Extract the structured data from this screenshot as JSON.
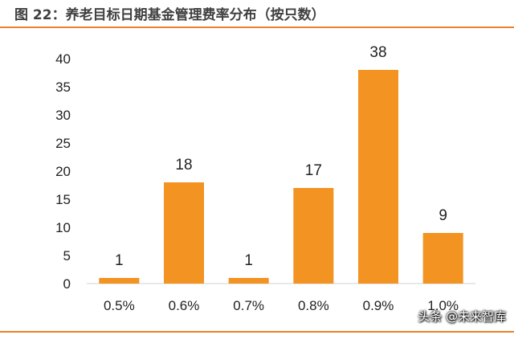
{
  "figure": {
    "title": "图 22：养老目标日期基金管理费率分布（按只数）",
    "accent_color": "#E8832A"
  },
  "watermark": "头条 @未来智库",
  "chart_data": {
    "type": "bar",
    "categories": [
      "0.5%",
      "0.6%",
      "0.7%",
      "0.8%",
      "0.9%",
      "1.0%"
    ],
    "values": [
      1,
      18,
      1,
      17,
      38,
      9
    ],
    "data_labels": [
      "1",
      "18",
      "1",
      "17",
      "38",
      "9"
    ],
    "yticks": [
      0,
      5,
      10,
      15,
      20,
      25,
      30,
      35,
      40
    ],
    "ylim": [
      0,
      40
    ],
    "bar_color": "#F39322",
    "grid": false,
    "legend": "none"
  }
}
